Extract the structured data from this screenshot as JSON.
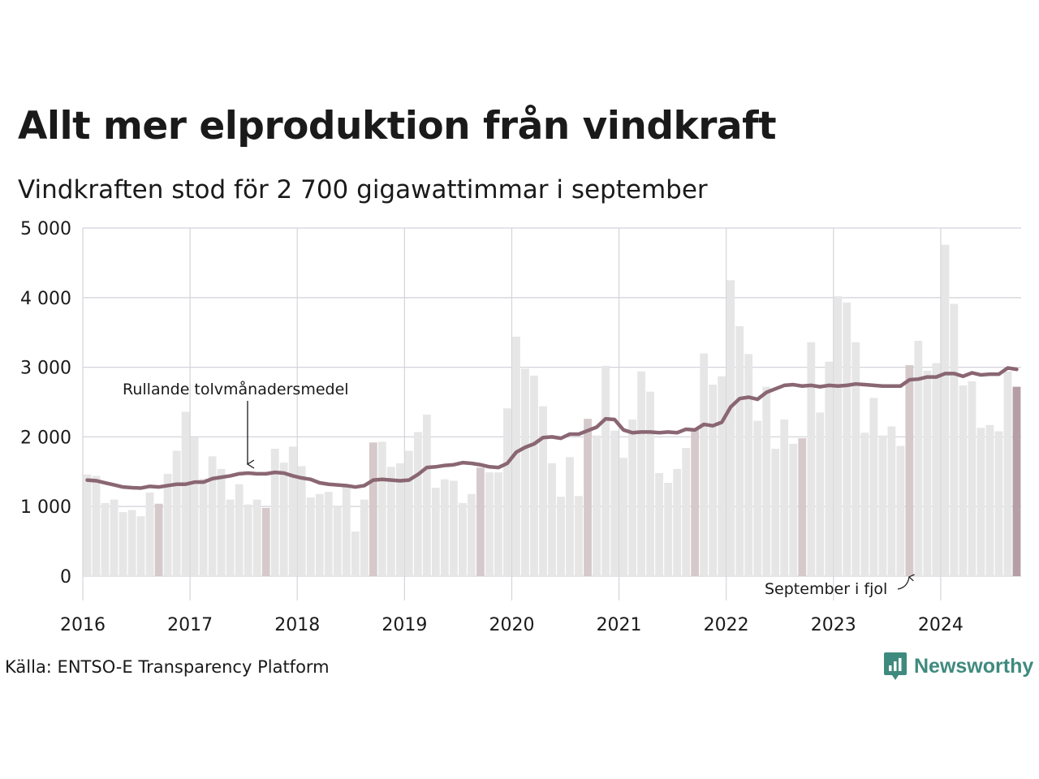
{
  "title": "Allt mer elproduktion från vindkraft",
  "subtitle": "Vindkraften stod för 2 700 gigawattimmar i september",
  "source": "Källa: ENTSO-E Transparency Platform",
  "brand": {
    "name": "Newsworthy",
    "icon": "bar-chart-badge-icon",
    "color": "#3f8a7e"
  },
  "colors": {
    "bar": "#e6e6e6",
    "highlight_bar": "#d6c9cc",
    "last_bar": "#b59ea5",
    "line": "#8a6673",
    "grid": "#d4d4dc"
  },
  "chart_data": {
    "type": "bar",
    "unit": "GWh",
    "x_start": "2016-01",
    "ylim": [
      0,
      5000
    ],
    "yticks": [
      0,
      1000,
      2000,
      3000,
      4000,
      5000
    ],
    "ytick_labels": [
      "0",
      "1 000",
      "2 000",
      "3 000",
      "4 000",
      "5 000"
    ],
    "xtick_labels": [
      "2016",
      "2017",
      "2018",
      "2019",
      "2020",
      "2021",
      "2022",
      "2023",
      "2024"
    ],
    "grid": true,
    "series": [
      {
        "type": "bar",
        "values": [
          1460,
          1440,
          1050,
          1100,
          920,
          950,
          860,
          1200,
          1040,
          1470,
          1800,
          2360,
          1990,
          1400,
          1720,
          1540,
          1100,
          1320,
          1030,
          1100,
          980,
          1830,
          1630,
          1860,
          1580,
          1130,
          1180,
          1210,
          1000,
          1300,
          640,
          1100,
          1920,
          1930,
          1570,
          1620,
          1800,
          2070,
          2320,
          1270,
          1390,
          1370,
          1050,
          1180,
          1560,
          1490,
          1490,
          2410,
          3440,
          2980,
          2880,
          2440,
          1620,
          1140,
          1710,
          1150,
          2260,
          2020,
          3020,
          2090,
          1700,
          2250,
          2940,
          2650,
          1480,
          1340,
          1540,
          1840,
          2100,
          3200,
          2750,
          2870,
          4250,
          3590,
          3190,
          2230,
          2720,
          1830,
          2250,
          1900,
          1980,
          3360,
          2350,
          3080,
          4020,
          3930,
          3360,
          2060,
          2560,
          2020,
          2150,
          1870,
          3030,
          3380,
          2950,
          3060,
          4760,
          3910,
          2740,
          2800,
          2130,
          2170,
          2080,
          2940,
          2720
        ],
        "highlight": "September"
      },
      {
        "type": "line",
        "name": "Rullande tolvmånadersmedel",
        "values": [
          1380,
          1370,
          1340,
          1310,
          1280,
          1270,
          1265,
          1290,
          1280,
          1300,
          1320,
          1320,
          1350,
          1350,
          1400,
          1420,
          1440,
          1470,
          1480,
          1470,
          1470,
          1490,
          1480,
          1440,
          1410,
          1390,
          1340,
          1320,
          1310,
          1300,
          1280,
          1300,
          1380,
          1390,
          1380,
          1370,
          1380,
          1460,
          1560,
          1570,
          1590,
          1600,
          1630,
          1620,
          1600,
          1570,
          1560,
          1620,
          1780,
          1850,
          1900,
          1990,
          2000,
          1980,
          2040,
          2040,
          2090,
          2140,
          2260,
          2250,
          2100,
          2060,
          2070,
          2070,
          2060,
          2070,
          2060,
          2110,
          2100,
          2180,
          2160,
          2210,
          2430,
          2550,
          2570,
          2540,
          2640,
          2690,
          2740,
          2750,
          2730,
          2740,
          2720,
          2740,
          2730,
          2740,
          2760,
          2750,
          2740,
          2730,
          2730,
          2730,
          2820,
          2830,
          2860,
          2860,
          2910,
          2910,
          2870,
          2920,
          2890,
          2900,
          2900,
          2990,
          2970
        ]
      }
    ],
    "annotations": [
      {
        "label": "Rullande tolvmånadersmedel",
        "target": "line"
      },
      {
        "label": "September i fjol",
        "target": "2023-09"
      }
    ]
  }
}
